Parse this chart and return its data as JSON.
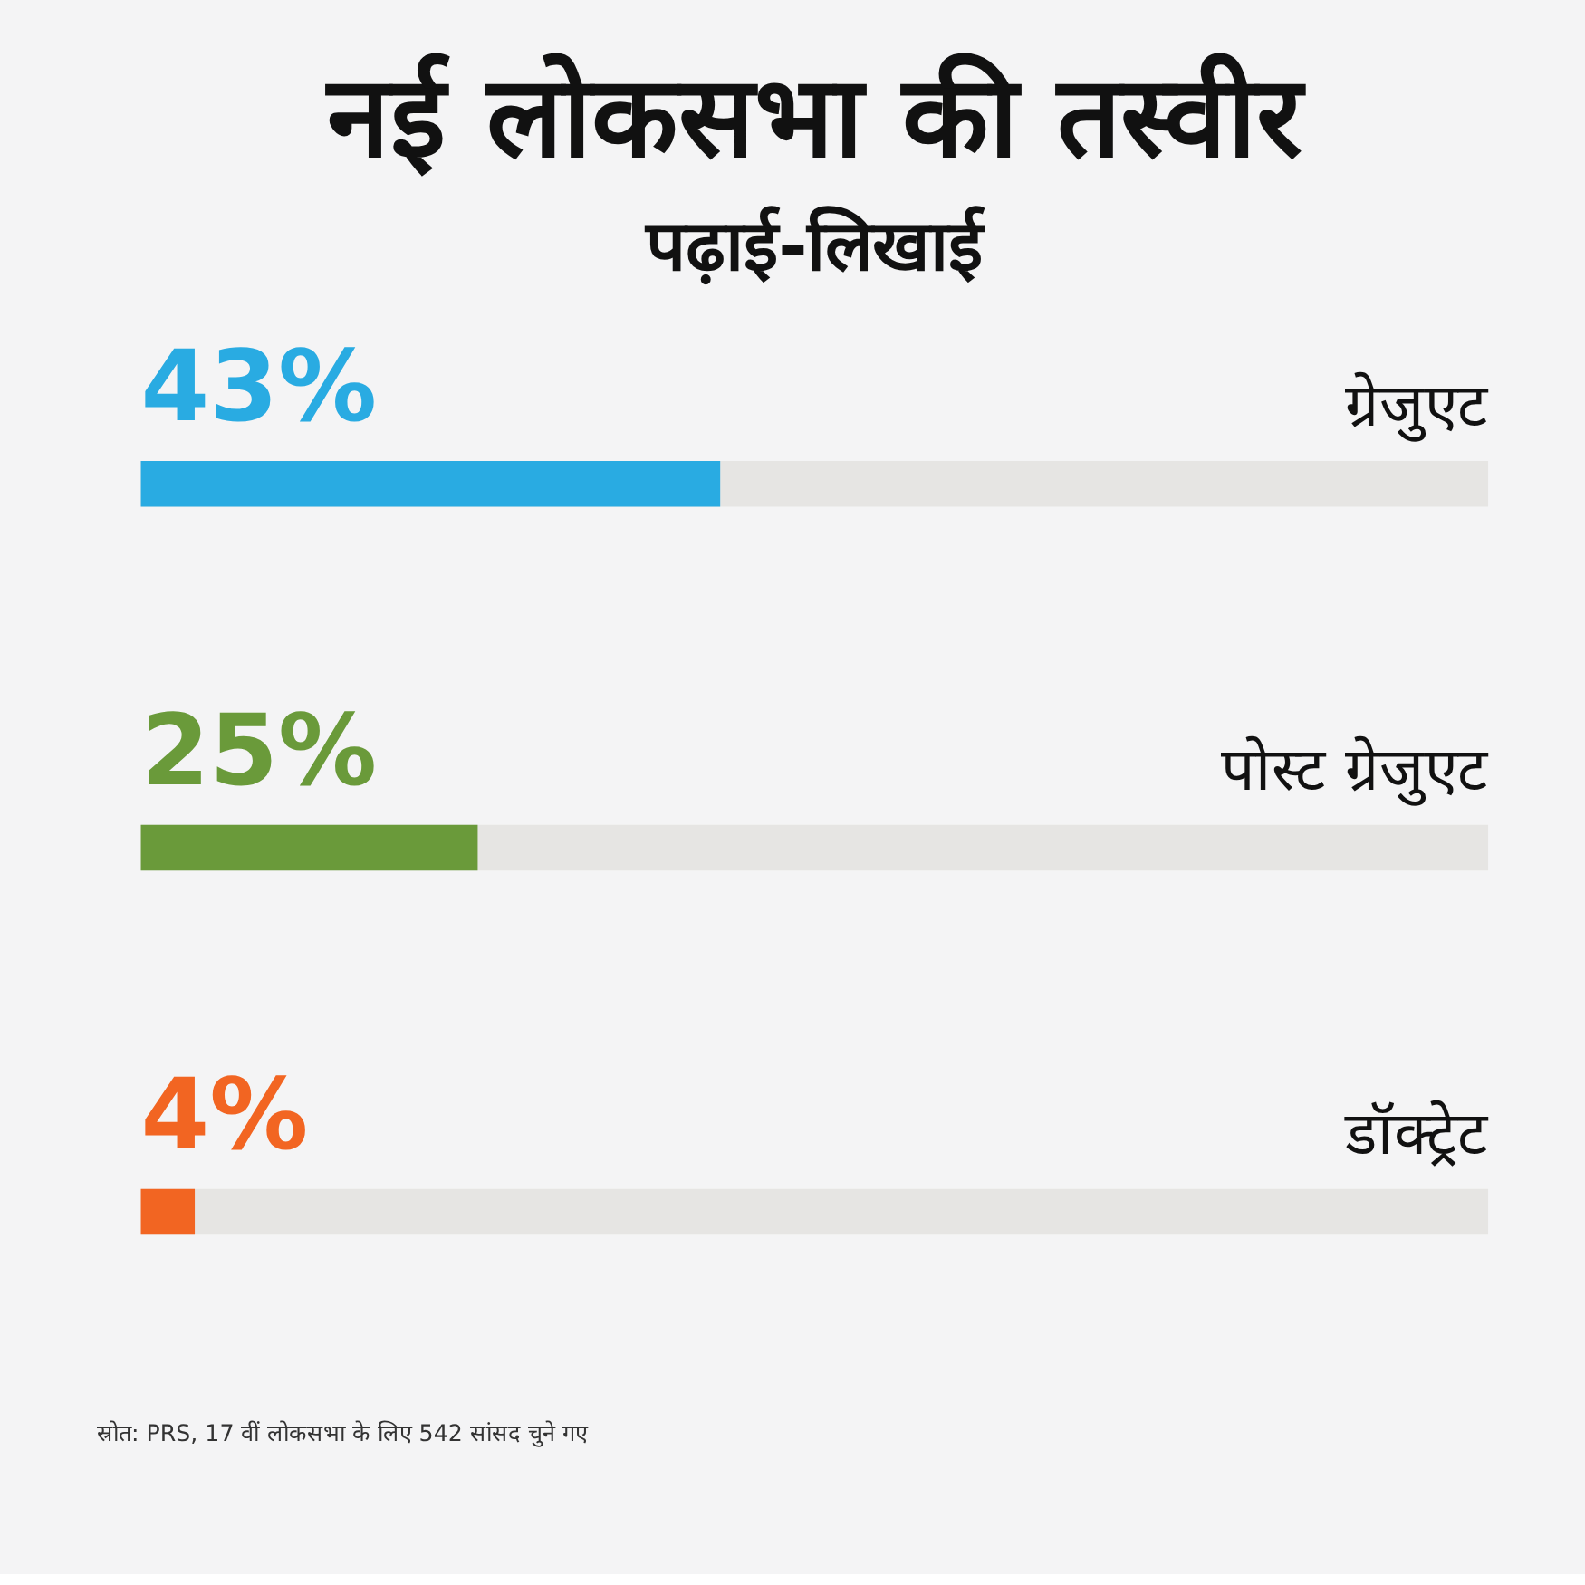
{
  "chart_data": {
    "type": "bar",
    "orientation": "horizontal",
    "title": "नई लोकसभा की तस्वीर",
    "subtitle": "पढ़ाई-लिखाई",
    "categories": [
      "ग्रेजुएट",
      "पोस्ट ग्रेजुएट",
      "डॉक्ट्रेट"
    ],
    "values": [
      43,
      25,
      4
    ],
    "colors": [
      "#29abe2",
      "#6a9a3a",
      "#f26522"
    ],
    "value_labels": [
      "43%",
      "25%",
      "4%"
    ],
    "xlim": [
      0,
      100
    ],
    "grid": false,
    "annotations": [
      "स्रोत: PRS, 17 वीं लोकसभा के लिए 542 सांसद चुने गए"
    ]
  }
}
